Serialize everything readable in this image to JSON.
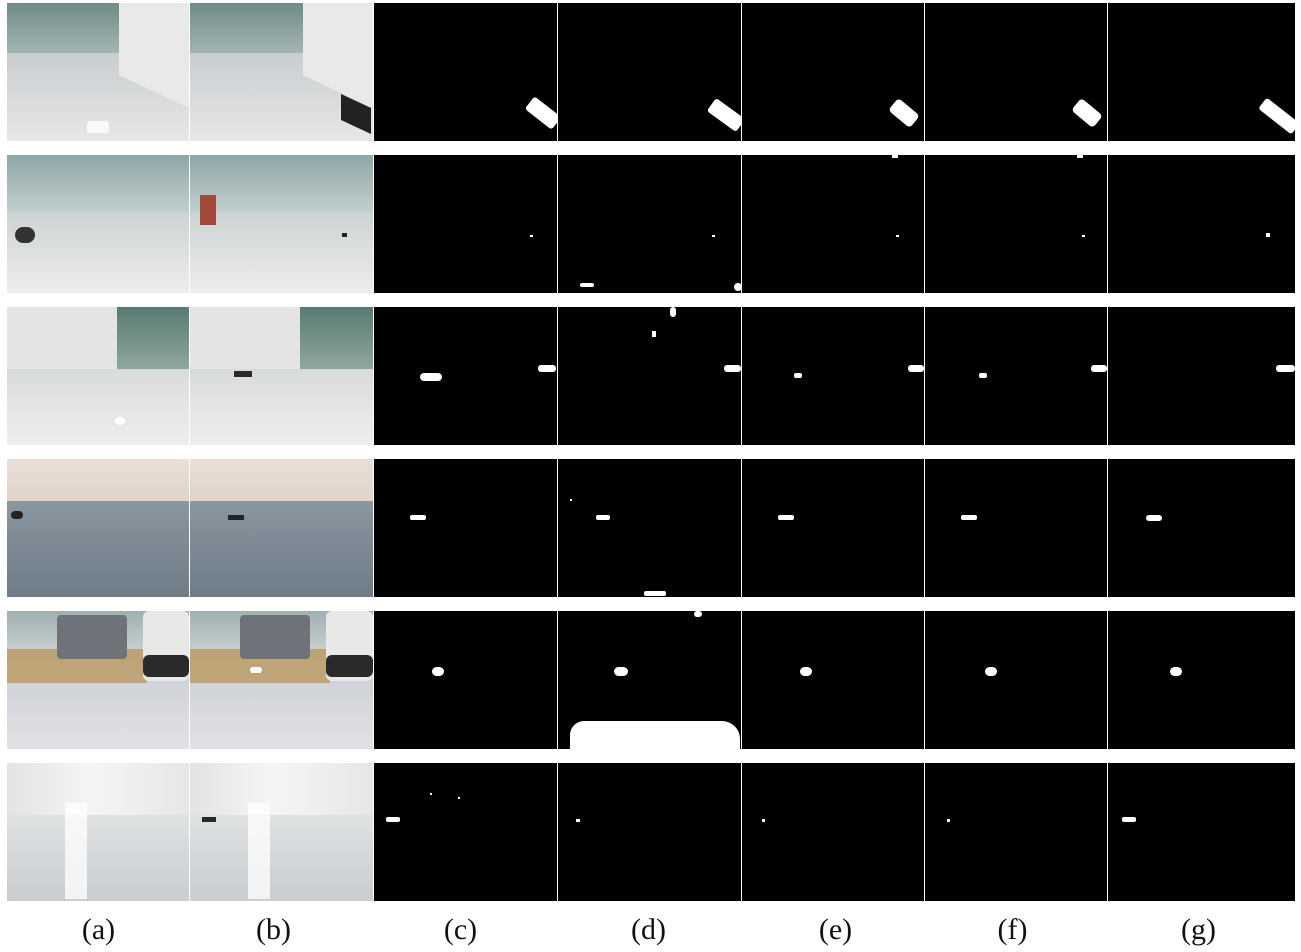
{
  "figure": {
    "columns": [
      {
        "label": "(a)",
        "kind": "photo"
      },
      {
        "label": "(b)",
        "kind": "photo"
      },
      {
        "label": "(c)",
        "kind": "mask"
      },
      {
        "label": "(d)",
        "kind": "mask"
      },
      {
        "label": "(e)",
        "kind": "mask"
      },
      {
        "label": "(f)",
        "kind": "mask"
      },
      {
        "label": "(g)",
        "kind": "mask"
      }
    ],
    "row_count": 6
  }
}
